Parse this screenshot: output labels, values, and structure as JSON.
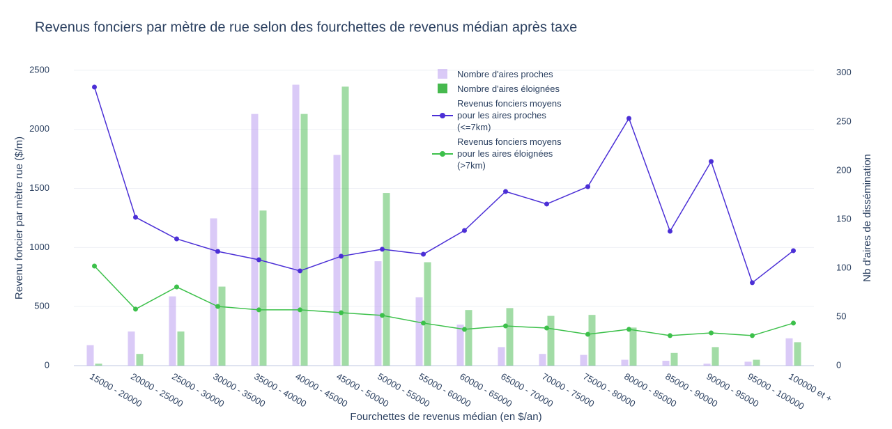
{
  "chart_data": {
    "type": "bar",
    "title": "Revenus fonciers par mètre de rue selon des fourchettes de revenus médian après taxe",
    "x_label": "Fourchettes de revenus médian (en $/an)",
    "y_label": "Revenu foncier par mètre rue ($/m)",
    "y2_label": "Nb d'aires de dissémination",
    "categories": [
      "15000 - 20000",
      "20000 - 25000",
      "25000 - 30000",
      "30000 - 35000",
      "35000 - 40000",
      "40000 - 45000",
      "45000 - 50000",
      "50000 - 55000",
      "55000 - 60000",
      "60000 - 65000",
      "65000 - 70000",
      "70000 - 75000",
      "75000 - 80000",
      "80000 - 85000",
      "85000 - 90000",
      "90000 - 95000",
      "95000 - 100000",
      "100000 et +"
    ],
    "series": [
      {
        "name": "Nombre d'aires proches",
        "type": "bar",
        "axis": "y2",
        "color": "#b596f0",
        "values": [
          21,
          35,
          71,
          151,
          258,
          288,
          216,
          107,
          70,
          42,
          19,
          12,
          11,
          6,
          5,
          2,
          4,
          28
        ]
      },
      {
        "name": "Nombre d'aires éloignées",
        "type": "bar",
        "axis": "y2",
        "color": "#46b94e",
        "values": [
          2,
          12,
          35,
          81,
          159,
          258,
          286,
          177,
          106,
          57,
          59,
          51,
          52,
          39,
          13,
          19,
          6,
          24
        ]
      },
      {
        "name": "Revenus fonciers moyens\npour les aires proches\n (<=7km)",
        "type": "line",
        "axis": "y",
        "color": "#4b2fd6",
        "values": [
          2358,
          1256,
          1073,
          967,
          896,
          802,
          926,
          985,
          943,
          1144,
          1474,
          1368,
          1515,
          2093,
          1138,
          1728,
          702,
          973
        ]
      },
      {
        "name": "Revenus fonciers moyens\npour les aires éloignées\n (>7km)",
        "type": "line",
        "axis": "y",
        "color": "#3cc04a",
        "values": [
          843,
          478,
          666,
          501,
          472,
          472,
          448,
          425,
          360,
          307,
          336,
          318,
          265,
          307,
          254,
          277,
          254,
          360
        ]
      }
    ],
    "ylim": [
      0,
      2535
    ],
    "yticks": [
      0,
      500,
      1000,
      1500,
      2000,
      2500
    ],
    "y2lim": [
      0,
      307
    ],
    "y2ticks": [
      0,
      50,
      100,
      150,
      200,
      250,
      300
    ],
    "grid": true
  }
}
